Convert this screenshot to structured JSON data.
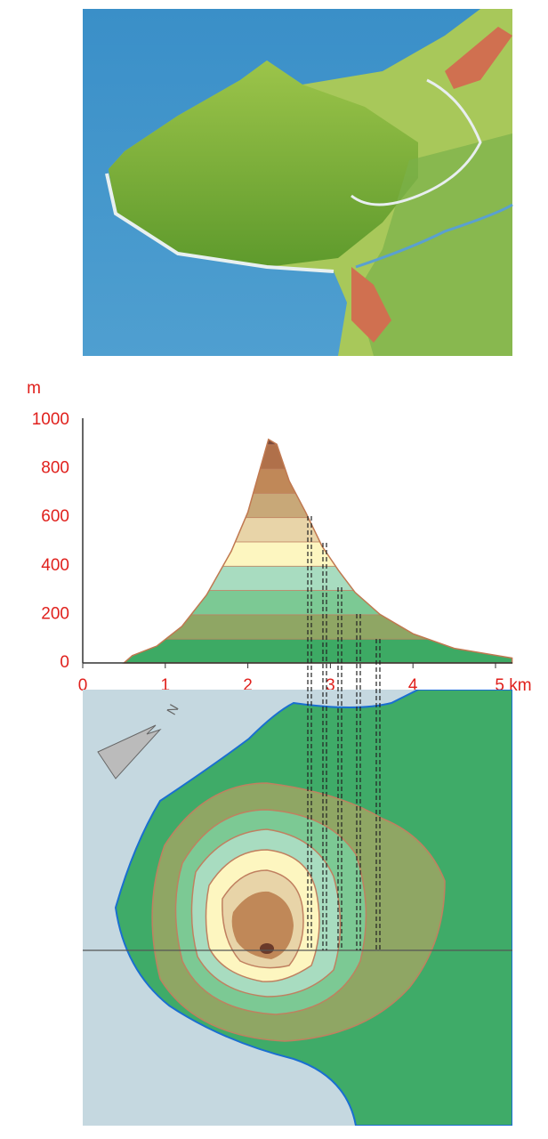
{
  "profile": {
    "y_unit": "m",
    "y_ticks": [
      "0",
      "200",
      "400",
      "600",
      "800",
      "1000"
    ],
    "x_ticks": [
      "0",
      "1",
      "2",
      "3",
      "4",
      "5 km"
    ]
  },
  "compass": {
    "label": "N"
  }
}
